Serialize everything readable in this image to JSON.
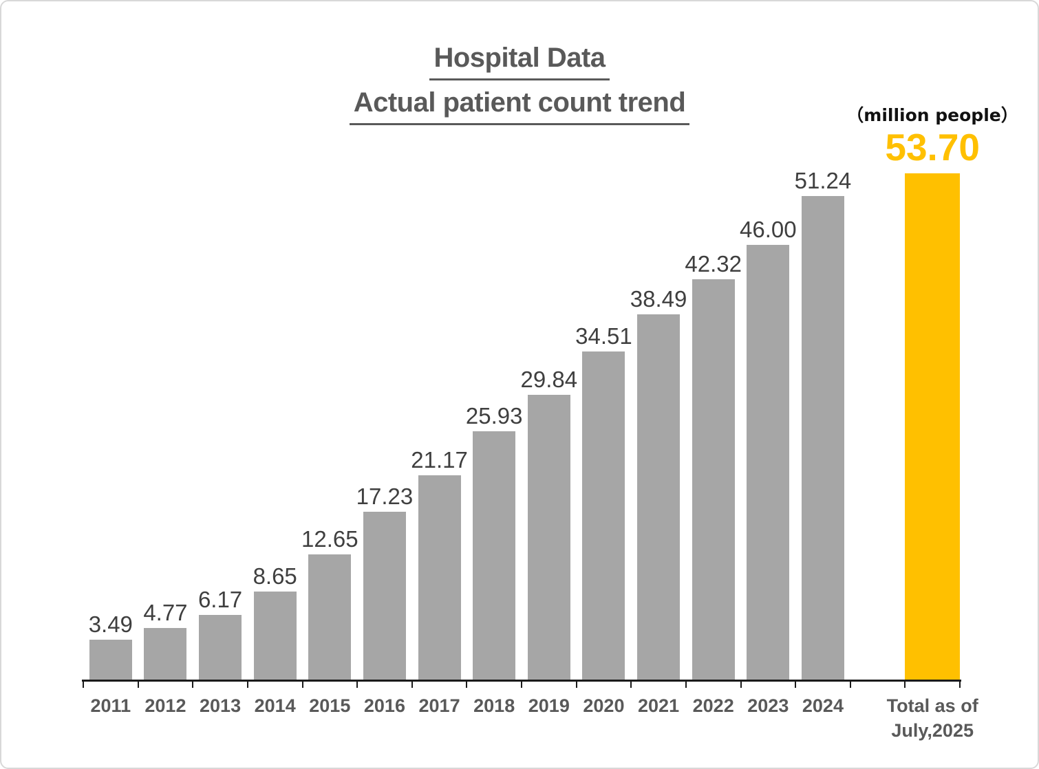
{
  "page": {
    "title_line1": "Hospital Data",
    "title_line2": "Actual patient count trend",
    "unit_label": "（million people）"
  },
  "chart_data": {
    "type": "bar",
    "title": "Hospital Data - Actual patient count trend",
    "unit": "million people",
    "xlabel": "",
    "ylabel": "patients (million people)",
    "ylim": [
      0,
      55
    ],
    "grid": false,
    "legend": "none",
    "categories": [
      "2011",
      "2012",
      "2013",
      "2014",
      "2015",
      "2016",
      "2017",
      "2018",
      "2019",
      "2020",
      "2021",
      "2022",
      "2023",
      "2024",
      "Total as of July,2025"
    ],
    "values": [
      3.49,
      4.77,
      6.17,
      8.65,
      12.65,
      17.23,
      21.17,
      25.93,
      29.84,
      34.51,
      38.49,
      42.32,
      46.0,
      51.24,
      53.7
    ],
    "bars": [
      {
        "label_lines": [
          "2011"
        ],
        "value": 3.49,
        "value_label": "3.49",
        "color": "#A6A6A6",
        "slot": 0,
        "emphasis": false
      },
      {
        "label_lines": [
          "2012"
        ],
        "value": 4.77,
        "value_label": "4.77",
        "color": "#A6A6A6",
        "slot": 1,
        "emphasis": false
      },
      {
        "label_lines": [
          "2013"
        ],
        "value": 6.17,
        "value_label": "6.17",
        "color": "#A6A6A6",
        "slot": 2,
        "emphasis": false
      },
      {
        "label_lines": [
          "2014"
        ],
        "value": 8.65,
        "value_label": "8.65",
        "color": "#A6A6A6",
        "slot": 3,
        "emphasis": false
      },
      {
        "label_lines": [
          "2015"
        ],
        "value": 12.65,
        "value_label": "12.65",
        "color": "#A6A6A6",
        "slot": 4,
        "emphasis": false
      },
      {
        "label_lines": [
          "2016"
        ],
        "value": 17.23,
        "value_label": "17.23",
        "color": "#A6A6A6",
        "slot": 5,
        "emphasis": false
      },
      {
        "label_lines": [
          "2017"
        ],
        "value": 21.17,
        "value_label": "21.17",
        "color": "#A6A6A6",
        "slot": 6,
        "emphasis": false
      },
      {
        "label_lines": [
          "2018"
        ],
        "value": 25.93,
        "value_label": "25.93",
        "color": "#A6A6A6",
        "slot": 7,
        "emphasis": false
      },
      {
        "label_lines": [
          "2019"
        ],
        "value": 29.84,
        "value_label": "29.84",
        "color": "#A6A6A6",
        "slot": 8,
        "emphasis": false
      },
      {
        "label_lines": [
          "2020"
        ],
        "value": 34.51,
        "value_label": "34.51",
        "color": "#A6A6A6",
        "slot": 9,
        "emphasis": false
      },
      {
        "label_lines": [
          "2021"
        ],
        "value": 38.49,
        "value_label": "38.49",
        "color": "#A6A6A6",
        "slot": 10,
        "emphasis": false
      },
      {
        "label_lines": [
          "2022"
        ],
        "value": 42.32,
        "value_label": "42.32",
        "color": "#A6A6A6",
        "slot": 11,
        "emphasis": false
      },
      {
        "label_lines": [
          "2023"
        ],
        "value": 46.0,
        "value_label": "46.00",
        "color": "#A6A6A6",
        "slot": 12,
        "emphasis": false
      },
      {
        "label_lines": [
          "2024"
        ],
        "value": 51.24,
        "value_label": "51.24",
        "color": "#A6A6A6",
        "slot": 13,
        "emphasis": false
      },
      {
        "label_lines": [
          "Total as of",
          "July,2025"
        ],
        "value": 53.7,
        "value_label": "53.70",
        "color": "#FFC000",
        "slot": 15,
        "emphasis": true
      }
    ],
    "total_slots": 16,
    "colors": {
      "bar_gray": "#A6A6A6",
      "bar_accent": "#FFC000",
      "value_label": "#3F3F3F",
      "axis_text": "#595959",
      "axis_line": "#1A1A1A",
      "title_text": "#595959"
    }
  }
}
